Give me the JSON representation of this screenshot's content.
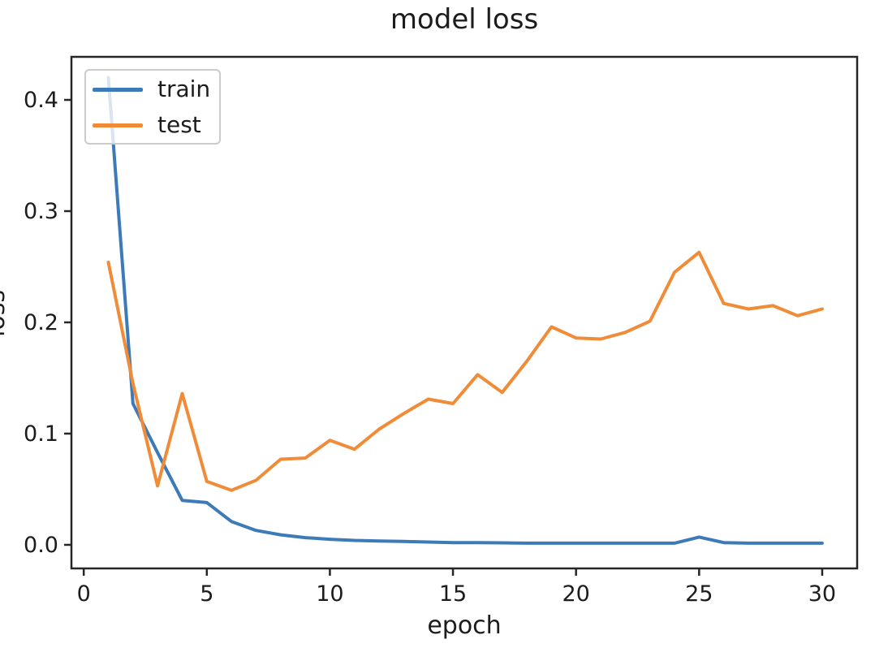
{
  "figure": {
    "title": "model loss",
    "xlabel": "epoch",
    "ylabel": "loss"
  },
  "legend": {
    "position": "upper left",
    "items": [
      {
        "label": "train",
        "color": "#3c7bb7"
      },
      {
        "label": "test",
        "color": "#f08b38"
      }
    ]
  },
  "style": {
    "spine_color": "#262626",
    "text_color": "#1c1c1c",
    "line_width": 4
  },
  "chart_data": {
    "type": "line",
    "title": "model loss",
    "xlabel": "epoch",
    "ylabel": "loss",
    "grid": false,
    "legend_position": "upper left",
    "xlim": [
      -0.5,
      31.42
    ],
    "ylim": [
      -0.0212,
      0.4387
    ],
    "x_ticks": [
      0,
      5,
      10,
      15,
      20,
      25,
      30
    ],
    "y_ticks": [
      {
        "value": 0.0,
        "label": "0.0"
      },
      {
        "value": 0.1,
        "label": "0.1"
      },
      {
        "value": 0.2,
        "label": "0.2"
      },
      {
        "value": 0.3,
        "label": "0.3"
      },
      {
        "value": 0.4,
        "label": "0.4"
      }
    ],
    "x": [
      1,
      2,
      3,
      4,
      5,
      6,
      7,
      8,
      9,
      10,
      11,
      12,
      13,
      14,
      15,
      16,
      17,
      18,
      19,
      20,
      21,
      22,
      23,
      24,
      25,
      26,
      27,
      28,
      29,
      30
    ],
    "series": [
      {
        "name": "train",
        "color": "#3c7bb7",
        "values": [
          0.42,
          0.127,
          0.083,
          0.04,
          0.038,
          0.021,
          0.013,
          0.009,
          0.0065,
          0.005,
          0.004,
          0.0035,
          0.003,
          0.0025,
          0.002,
          0.002,
          0.0018,
          0.0015,
          0.0015,
          0.0015,
          0.0015,
          0.0015,
          0.0015,
          0.0015,
          0.007,
          0.002,
          0.0015,
          0.0015,
          0.0015,
          0.0015
        ]
      },
      {
        "name": "test",
        "color": "#f08b38",
        "values": [
          0.254,
          0.145,
          0.053,
          0.136,
          0.057,
          0.049,
          0.058,
          0.077,
          0.078,
          0.094,
          0.086,
          0.104,
          0.118,
          0.131,
          0.127,
          0.153,
          0.137,
          0.165,
          0.196,
          0.186,
          0.185,
          0.191,
          0.201,
          0.245,
          0.263,
          0.217,
          0.212,
          0.215,
          0.206,
          0.212
        ]
      }
    ]
  }
}
